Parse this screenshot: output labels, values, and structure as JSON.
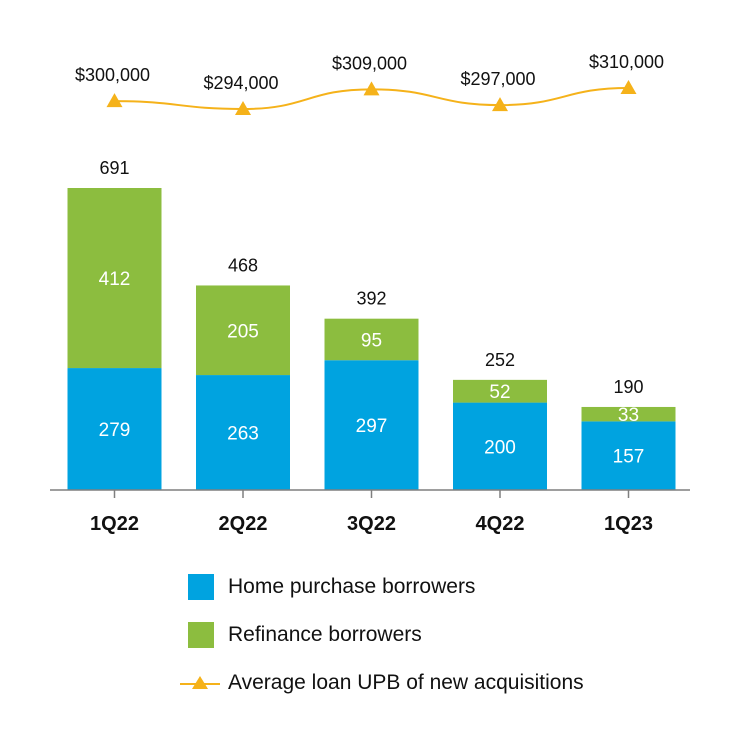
{
  "chart_data": {
    "type": "bar",
    "stacked": true,
    "categories": [
      "1Q22",
      "2Q22",
      "3Q22",
      "4Q22",
      "1Q23"
    ],
    "series": [
      {
        "name": "Home purchase borrowers",
        "color": "#00a3e0",
        "values": [
          279,
          263,
          297,
          200,
          157
        ]
      },
      {
        "name": "Refinance borrowers",
        "color": "#8cbd3f",
        "values": [
          412,
          205,
          95,
          52,
          33
        ]
      }
    ],
    "totals": [
      "691",
      "468",
      "392",
      "252",
      "190"
    ],
    "line_series": {
      "name": "Average loan UPB of new acquisitions",
      "color": "#f5b21a",
      "marker": "triangle",
      "values": [
        300000,
        294000,
        309000,
        297000,
        310000
      ],
      "labels": [
        "$300,000",
        "$294,000",
        "$309,000",
        "$297,000",
        "$310,000"
      ]
    },
    "ylim": [
      0,
      691
    ],
    "title": "",
    "xlabel": "",
    "ylabel": "",
    "grid": false,
    "legend_position": "bottom"
  }
}
